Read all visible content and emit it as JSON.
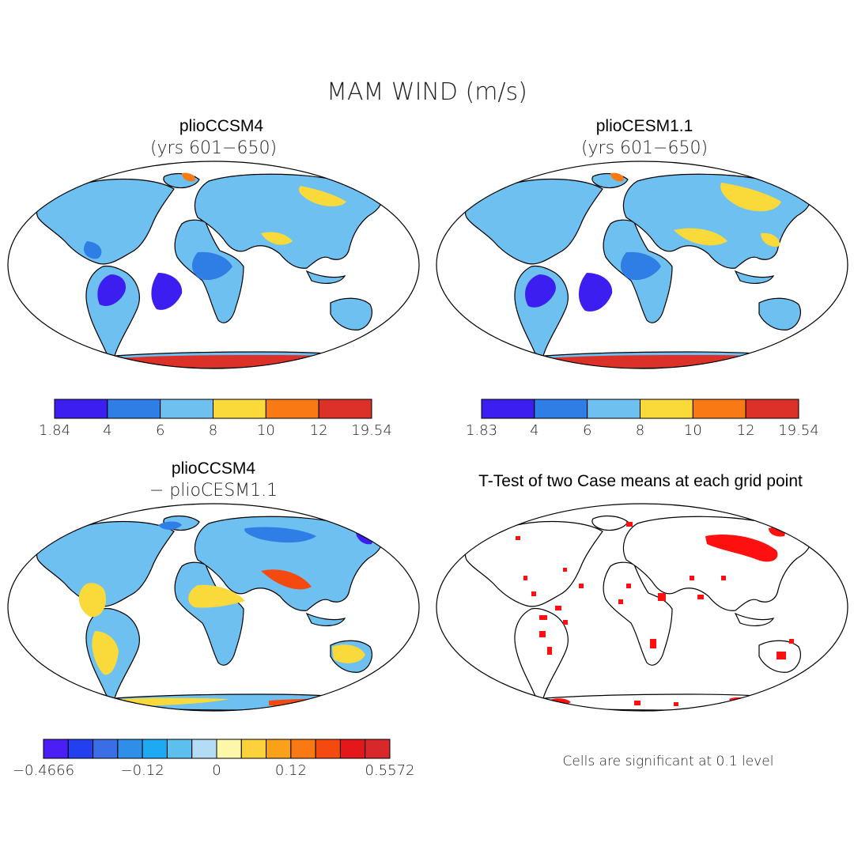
{
  "figure": {
    "title": "MAM WIND (m/s)",
    "footnote": "Cells are significant at 0.1 level"
  },
  "panels": [
    {
      "id": "p1",
      "title": "plioCCSM4",
      "subtitle": "(yrs 601−650)",
      "colorbar": {
        "labels": [
          "1.84",
          "4",
          "6",
          "8",
          "10",
          "12",
          "19.54"
        ],
        "colors": [
          "#3d1ef0",
          "#2e7ee6",
          "#6ec0f0",
          "#fad93a",
          "#f97a14",
          "#dc3128"
        ]
      }
    },
    {
      "id": "p2",
      "title": "plioCESM1.1",
      "subtitle": "(yrs 601−650)",
      "colorbar": {
        "labels": [
          "1.83",
          "4",
          "6",
          "8",
          "10",
          "12",
          "19.54"
        ],
        "colors": [
          "#3d1ef0",
          "#2e7ee6",
          "#6ec0f0",
          "#fad93a",
          "#f97a14",
          "#dc3128"
        ]
      }
    },
    {
      "id": "p3",
      "title": "plioCCSM4",
      "subtitle": "− plioCESM1.1",
      "colorbar": {
        "labels": [
          "−0.4666",
          "−0.12",
          "0",
          "0.12",
          "0.5572"
        ],
        "colors": [
          "#4a1ef5",
          "#2340f0",
          "#3a6ee4",
          "#2f8fe8",
          "#1eaaf2",
          "#5cbfee",
          "#b4dcf5",
          "#fdf7aa",
          "#fbd23c",
          "#f9a219",
          "#f97a14",
          "#f44a10",
          "#e41818",
          "#d8282a"
        ]
      }
    },
    {
      "id": "p4",
      "title": "T-Test of two Case means at each grid point"
    }
  ]
}
